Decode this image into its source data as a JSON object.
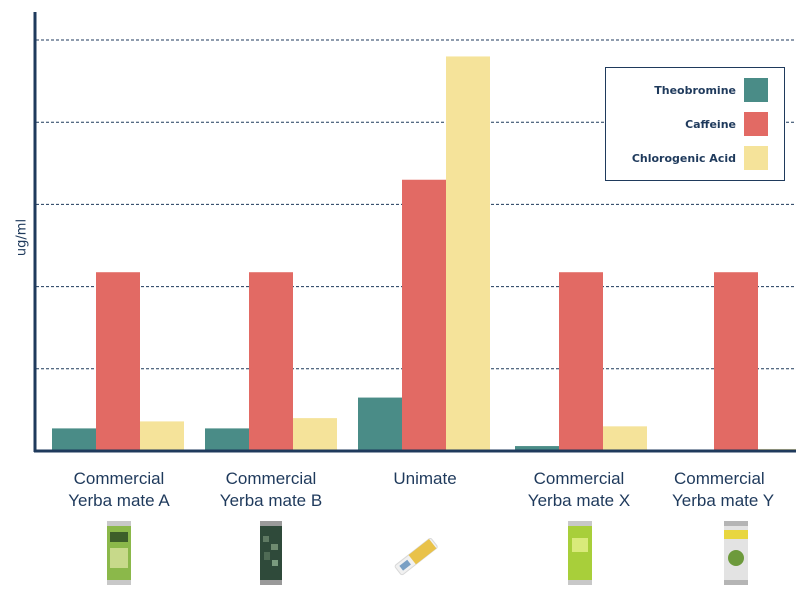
{
  "chart_data": {
    "type": "bar",
    "ylabel": "ug/ml",
    "xlabel": "",
    "title": "",
    "ylim": [
      0,
      10
    ],
    "grid": true,
    "legend_position": "top-right",
    "categories": [
      [
        "Commercial",
        "Yerba mate A"
      ],
      [
        "Commercial",
        "Yerba mate B"
      ],
      [
        "Unimate"
      ],
      [
        "Commercial",
        "Yerba mate X"
      ],
      [
        "Commercial",
        "Yerba mate Y"
      ]
    ],
    "series": [
      {
        "name": "Theobromine",
        "color": "#4a8c87",
        "values": [
          0.55,
          0.55,
          1.3,
          0.12,
          0.0
        ]
      },
      {
        "name": "Caffeine",
        "color": "#e26a64",
        "values": [
          4.35,
          4.35,
          6.6,
          4.35,
          4.35
        ]
      },
      {
        "name": "Chlorogenic Acid",
        "color": "#f5e39a",
        "values": [
          0.72,
          0.8,
          9.6,
          0.6,
          0.05
        ]
      }
    ]
  },
  "product_images": [
    {
      "icon": "green-can-icon",
      "color": "#8bb84a"
    },
    {
      "icon": "dark-can-icon",
      "color": "#2f4a3a"
    },
    {
      "icon": "stick-pack-icon",
      "color": "#e9c24a"
    },
    {
      "icon": "lime-can-icon",
      "color": "#a8cf3a"
    },
    {
      "icon": "silver-can-icon",
      "color": "#c9c9c9"
    }
  ]
}
